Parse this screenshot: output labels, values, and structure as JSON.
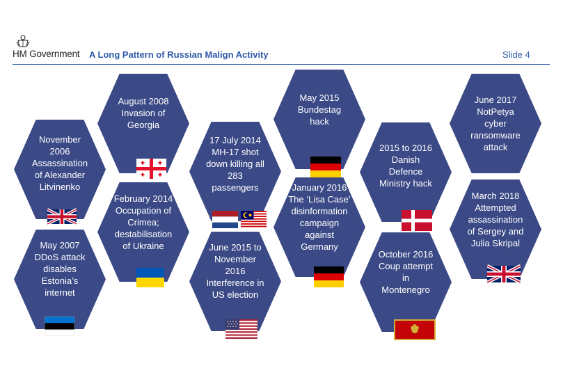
{
  "header": {
    "brand": "HM Government",
    "title": "A Long Pattern of Russian Malign Activity",
    "slide_label": "Slide 4"
  },
  "events": [
    {
      "text": "November\n2006\nAssassination\nof Alexander\nLitvinenko",
      "flag": "uk"
    },
    {
      "text": "May 2007\nDDoS attack\ndisables\nEstonia’s\ninternet",
      "flag": "estonia"
    },
    {
      "text": "August 2008\nInvasion of\nGeorgia",
      "flag": "georgia"
    },
    {
      "text": "February 2014\nOccupation of\nCrimea;\ndestabilisation\nof Ukraine",
      "flag": "ukraine"
    },
    {
      "text": "17 July 2014\nMH-17 shot\ndown killing all\n283\npassengers",
      "flag": "netherlands-malaysia"
    },
    {
      "text": "June 2015 to\nNovember\n2016\nInterference in\nUS election",
      "flag": "usa"
    },
    {
      "text": "May 2015\nBundestag\nhack",
      "flag": "germany"
    },
    {
      "text": "January 2016\nThe ‘Lisa Case’\ndisinformation\ncampaign\nagainst\nGermany",
      "flag": "germany"
    },
    {
      "text": "2015 to 2016\nDanish\nDefence\nMinistry hack",
      "flag": "denmark"
    },
    {
      "text": "October 2016\nCoup attempt\nin\nMontenegro",
      "flag": "montenegro"
    },
    {
      "text": "June 2017\nNotPetya\ncyber\nransomware\nattack",
      "flag": ""
    },
    {
      "text": "March 2018\nAttempted\nassassination\nof Sergey and\nJulia Skripal",
      "flag": "uk"
    }
  ]
}
